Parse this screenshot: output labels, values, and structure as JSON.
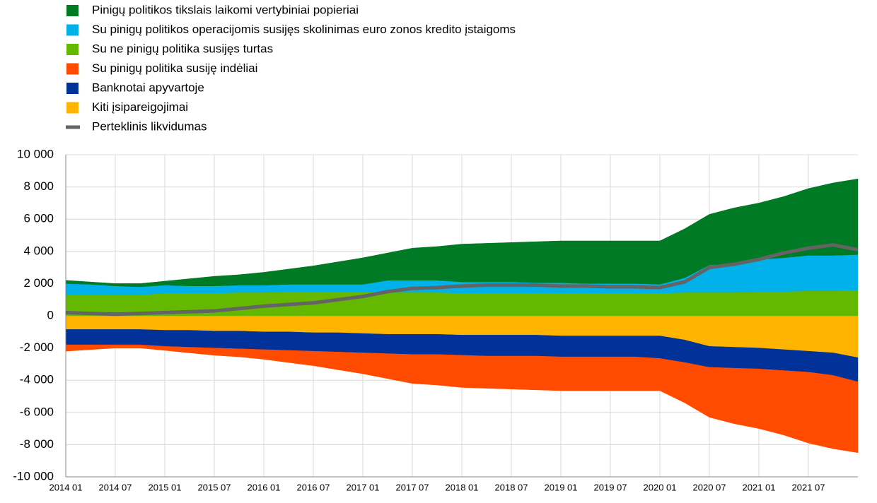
{
  "chart_data": {
    "type": "area",
    "categories": [
      "2014 01",
      null,
      "2014 07",
      null,
      "2015 01",
      null,
      "2015 07",
      null,
      "2016 01",
      null,
      "2016 07",
      null,
      "2017 01",
      null,
      "2017 07",
      null,
      "2018 01",
      null,
      "2018 07",
      null,
      "2019 01",
      null,
      "2019 07",
      null,
      "2020 01",
      null,
      "2020 07",
      null,
      "2021 01",
      null,
      "2021 07",
      null,
      null
    ],
    "series": [
      {
        "name": "Pinigų politikos tikslais laikomi vertybiniai popieriai",
        "color": "#007a25",
        "values": [
          200,
          150,
          150,
          200,
          250,
          450,
          600,
          650,
          800,
          950,
          1150,
          1400,
          1650,
          1700,
          2000,
          2100,
          2350,
          2400,
          2450,
          2550,
          2600,
          2650,
          2650,
          2650,
          2700,
          3050,
          3150,
          3450,
          3500,
          3800,
          4150,
          4500,
          4700
        ]
      },
      {
        "name": "Su pinigų politikos operacijomis susijęs skolinimas euro zonos kredito įstaigoms",
        "color": "#00b1ea",
        "values": [
          700,
          650,
          550,
          500,
          500,
          450,
          450,
          450,
          450,
          450,
          450,
          450,
          450,
          750,
          750,
          750,
          700,
          700,
          700,
          650,
          650,
          600,
          600,
          600,
          550,
          900,
          1700,
          1800,
          2000,
          2100,
          2200,
          2200,
          2200
        ]
      },
      {
        "name": "Su ne pinigų politika susijęs turtas",
        "color": "#65b800",
        "values": [
          1300,
          1300,
          1300,
          1300,
          1400,
          1400,
          1400,
          1450,
          1450,
          1500,
          1500,
          1500,
          1500,
          1450,
          1450,
          1450,
          1400,
          1400,
          1400,
          1400,
          1400,
          1400,
          1400,
          1400,
          1400,
          1450,
          1450,
          1450,
          1500,
          1500,
          1550,
          1550,
          1600
        ]
      },
      {
        "name": "Su pinigų politika susiję indėliai",
        "color": "#ff4b00",
        "values": [
          -400,
          -300,
          -200,
          -200,
          -250,
          -350,
          -450,
          -500,
          -600,
          -750,
          -900,
          -1100,
          -1300,
          -1550,
          -1800,
          -1900,
          -2000,
          -2000,
          -2050,
          -2100,
          -2100,
          -2100,
          -2100,
          -2100,
          -2000,
          -2500,
          -3100,
          -3450,
          -3700,
          -4000,
          -4400,
          -4550,
          -4400
        ]
      },
      {
        "name": "Banknotai apyvartoje",
        "color": "#003299",
        "values": [
          -950,
          -950,
          -950,
          -950,
          -1000,
          -1050,
          -1050,
          -1100,
          -1100,
          -1150,
          -1150,
          -1200,
          -1200,
          -1200,
          -1250,
          -1250,
          -1250,
          -1300,
          -1300,
          -1300,
          -1300,
          -1300,
          -1300,
          -1300,
          -1400,
          -1400,
          -1300,
          -1300,
          -1300,
          -1300,
          -1300,
          -1400,
          -1500
        ]
      },
      {
        "name": "Kiti įsipareigojimai",
        "color": "#ffb400",
        "values": [
          -850,
          -850,
          -850,
          -850,
          -900,
          -900,
          -950,
          -950,
          -1000,
          -1000,
          -1050,
          -1050,
          -1100,
          -1150,
          -1150,
          -1150,
          -1200,
          -1200,
          -1200,
          -1200,
          -1250,
          -1250,
          -1250,
          -1250,
          -1250,
          -1500,
          -1900,
          -1950,
          -2000,
          -2100,
          -2200,
          -2300,
          -2600
        ]
      },
      {
        "name": "Perteklinis likvidumas",
        "color": "#646464",
        "type": "line",
        "values": [
          200,
          150,
          100,
          150,
          200,
          250,
          300,
          450,
          600,
          700,
          800,
          1000,
          1200,
          1500,
          1700,
          1750,
          1850,
          1900,
          1900,
          1900,
          1850,
          1850,
          1800,
          1800,
          1750,
          2100,
          3000,
          3200,
          3500,
          3900,
          4200,
          4400,
          4100
        ]
      }
    ],
    "ylim": [
      -10000,
      10000
    ],
    "yticks": [
      {
        "value": -10000,
        "label": "-10 000"
      },
      {
        "value": -8000,
        "label": "-8 000"
      },
      {
        "value": -6000,
        "label": "-6 000"
      },
      {
        "value": -4000,
        "label": "-4 000"
      },
      {
        "value": -2000,
        "label": "-2 000"
      },
      0,
      {
        "value": 2000,
        "label": "2 000"
      },
      {
        "value": 4000,
        "label": "4 000"
      },
      {
        "value": 6000,
        "label": "6 000"
      },
      {
        "value": 8000,
        "label": "8 000"
      },
      {
        "value": 10000,
        "label": "10 000"
      }
    ],
    "grid": true,
    "legend": "top-left"
  }
}
